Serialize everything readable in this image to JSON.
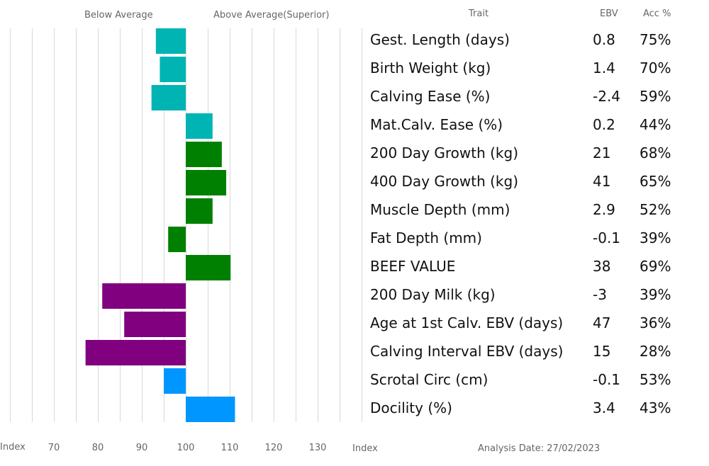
{
  "header": {
    "below_average": "Below Average",
    "above_average": "Above Average(Superior)",
    "trait": "Trait",
    "ebv": "EBV",
    "acc": "Acc %"
  },
  "footer": {
    "index_left": "Index",
    "index_right": "Index",
    "analysis_date": "Analysis Date: 27/02/2023"
  },
  "table": {
    "rows": [
      {
        "trait": "Gest. Length (days)",
        "ebv": "0.8",
        "acc": "75%"
      },
      {
        "trait": "Birth Weight (kg)",
        "ebv": "1.4",
        "acc": "70%"
      },
      {
        "trait": "Calving Ease (%)",
        "ebv": "-2.4",
        "acc": "59%"
      },
      {
        "trait": "Mat.Calv. Ease (%)",
        "ebv": "0.2",
        "acc": "44%"
      },
      {
        "trait": "200 Day Growth (kg)",
        "ebv": "21",
        "acc": "68%"
      },
      {
        "trait": "400 Day Growth (kg)",
        "ebv": "41",
        "acc": "65%"
      },
      {
        "trait": "Muscle Depth (mm)",
        "ebv": "2.9",
        "acc": "52%"
      },
      {
        "trait": "Fat Depth (mm)",
        "ebv": "-0.1",
        "acc": "39%"
      },
      {
        "trait": "BEEF VALUE",
        "ebv": "38",
        "acc": "69%"
      },
      {
        "trait": "200 Day Milk (kg)",
        "ebv": "-3",
        "acc": "39%"
      },
      {
        "trait": "Age at 1st Calv. EBV (days)",
        "ebv": "47",
        "acc": "36%"
      },
      {
        "trait": "Calving Interval EBV (days)",
        "ebv": "15",
        "acc": "28%"
      },
      {
        "trait": "Scrotal Circ (cm)",
        "ebv": "-0.1",
        "acc": "53%"
      },
      {
        "trait": "Docility (%)",
        "ebv": "3.4",
        "acc": "43%"
      }
    ]
  },
  "colors": {
    "calving": "#00b4b4",
    "growth": "#008000",
    "maternal": "#800080",
    "other": "#0096ff",
    "grid": "#d9d9d9"
  },
  "chart_data": {
    "type": "bar",
    "orientation": "horizontal",
    "baseline": 100,
    "xlim": [
      60,
      140
    ],
    "xticks": [
      70,
      80,
      90,
      100,
      110,
      120,
      130
    ],
    "grid": true,
    "series": [
      {
        "category": "Gest. Length (days)",
        "index": 93.2,
        "group": "calving"
      },
      {
        "category": "Birth Weight (kg)",
        "index": 94.1,
        "group": "calving"
      },
      {
        "category": "Calving Ease (%)",
        "index": 92.2,
        "group": "calving"
      },
      {
        "category": "Mat.Calv. Ease (%)",
        "index": 106.1,
        "group": "calving"
      },
      {
        "category": "200 Day Growth (kg)",
        "index": 108.2,
        "group": "growth"
      },
      {
        "category": "400 Day Growth (kg)",
        "index": 109.2,
        "group": "growth"
      },
      {
        "category": "Muscle Depth (mm)",
        "index": 106.1,
        "group": "growth"
      },
      {
        "category": "Fat Depth (mm)",
        "index": 96.0,
        "group": "growth"
      },
      {
        "category": "BEEF VALUE",
        "index": 110.2,
        "group": "growth"
      },
      {
        "category": "200 Day Milk (kg)",
        "index": 81.0,
        "group": "maternal"
      },
      {
        "category": "Age at 1st Calv. EBV (days)",
        "index": 86.0,
        "group": "maternal"
      },
      {
        "category": "Calving Interval EBV (days)",
        "index": 77.2,
        "group": "maternal"
      },
      {
        "category": "Scrotal Circ (cm)",
        "index": 95.0,
        "group": "other"
      },
      {
        "category": "Docility (%)",
        "index": 111.2,
        "group": "other"
      }
    ]
  }
}
